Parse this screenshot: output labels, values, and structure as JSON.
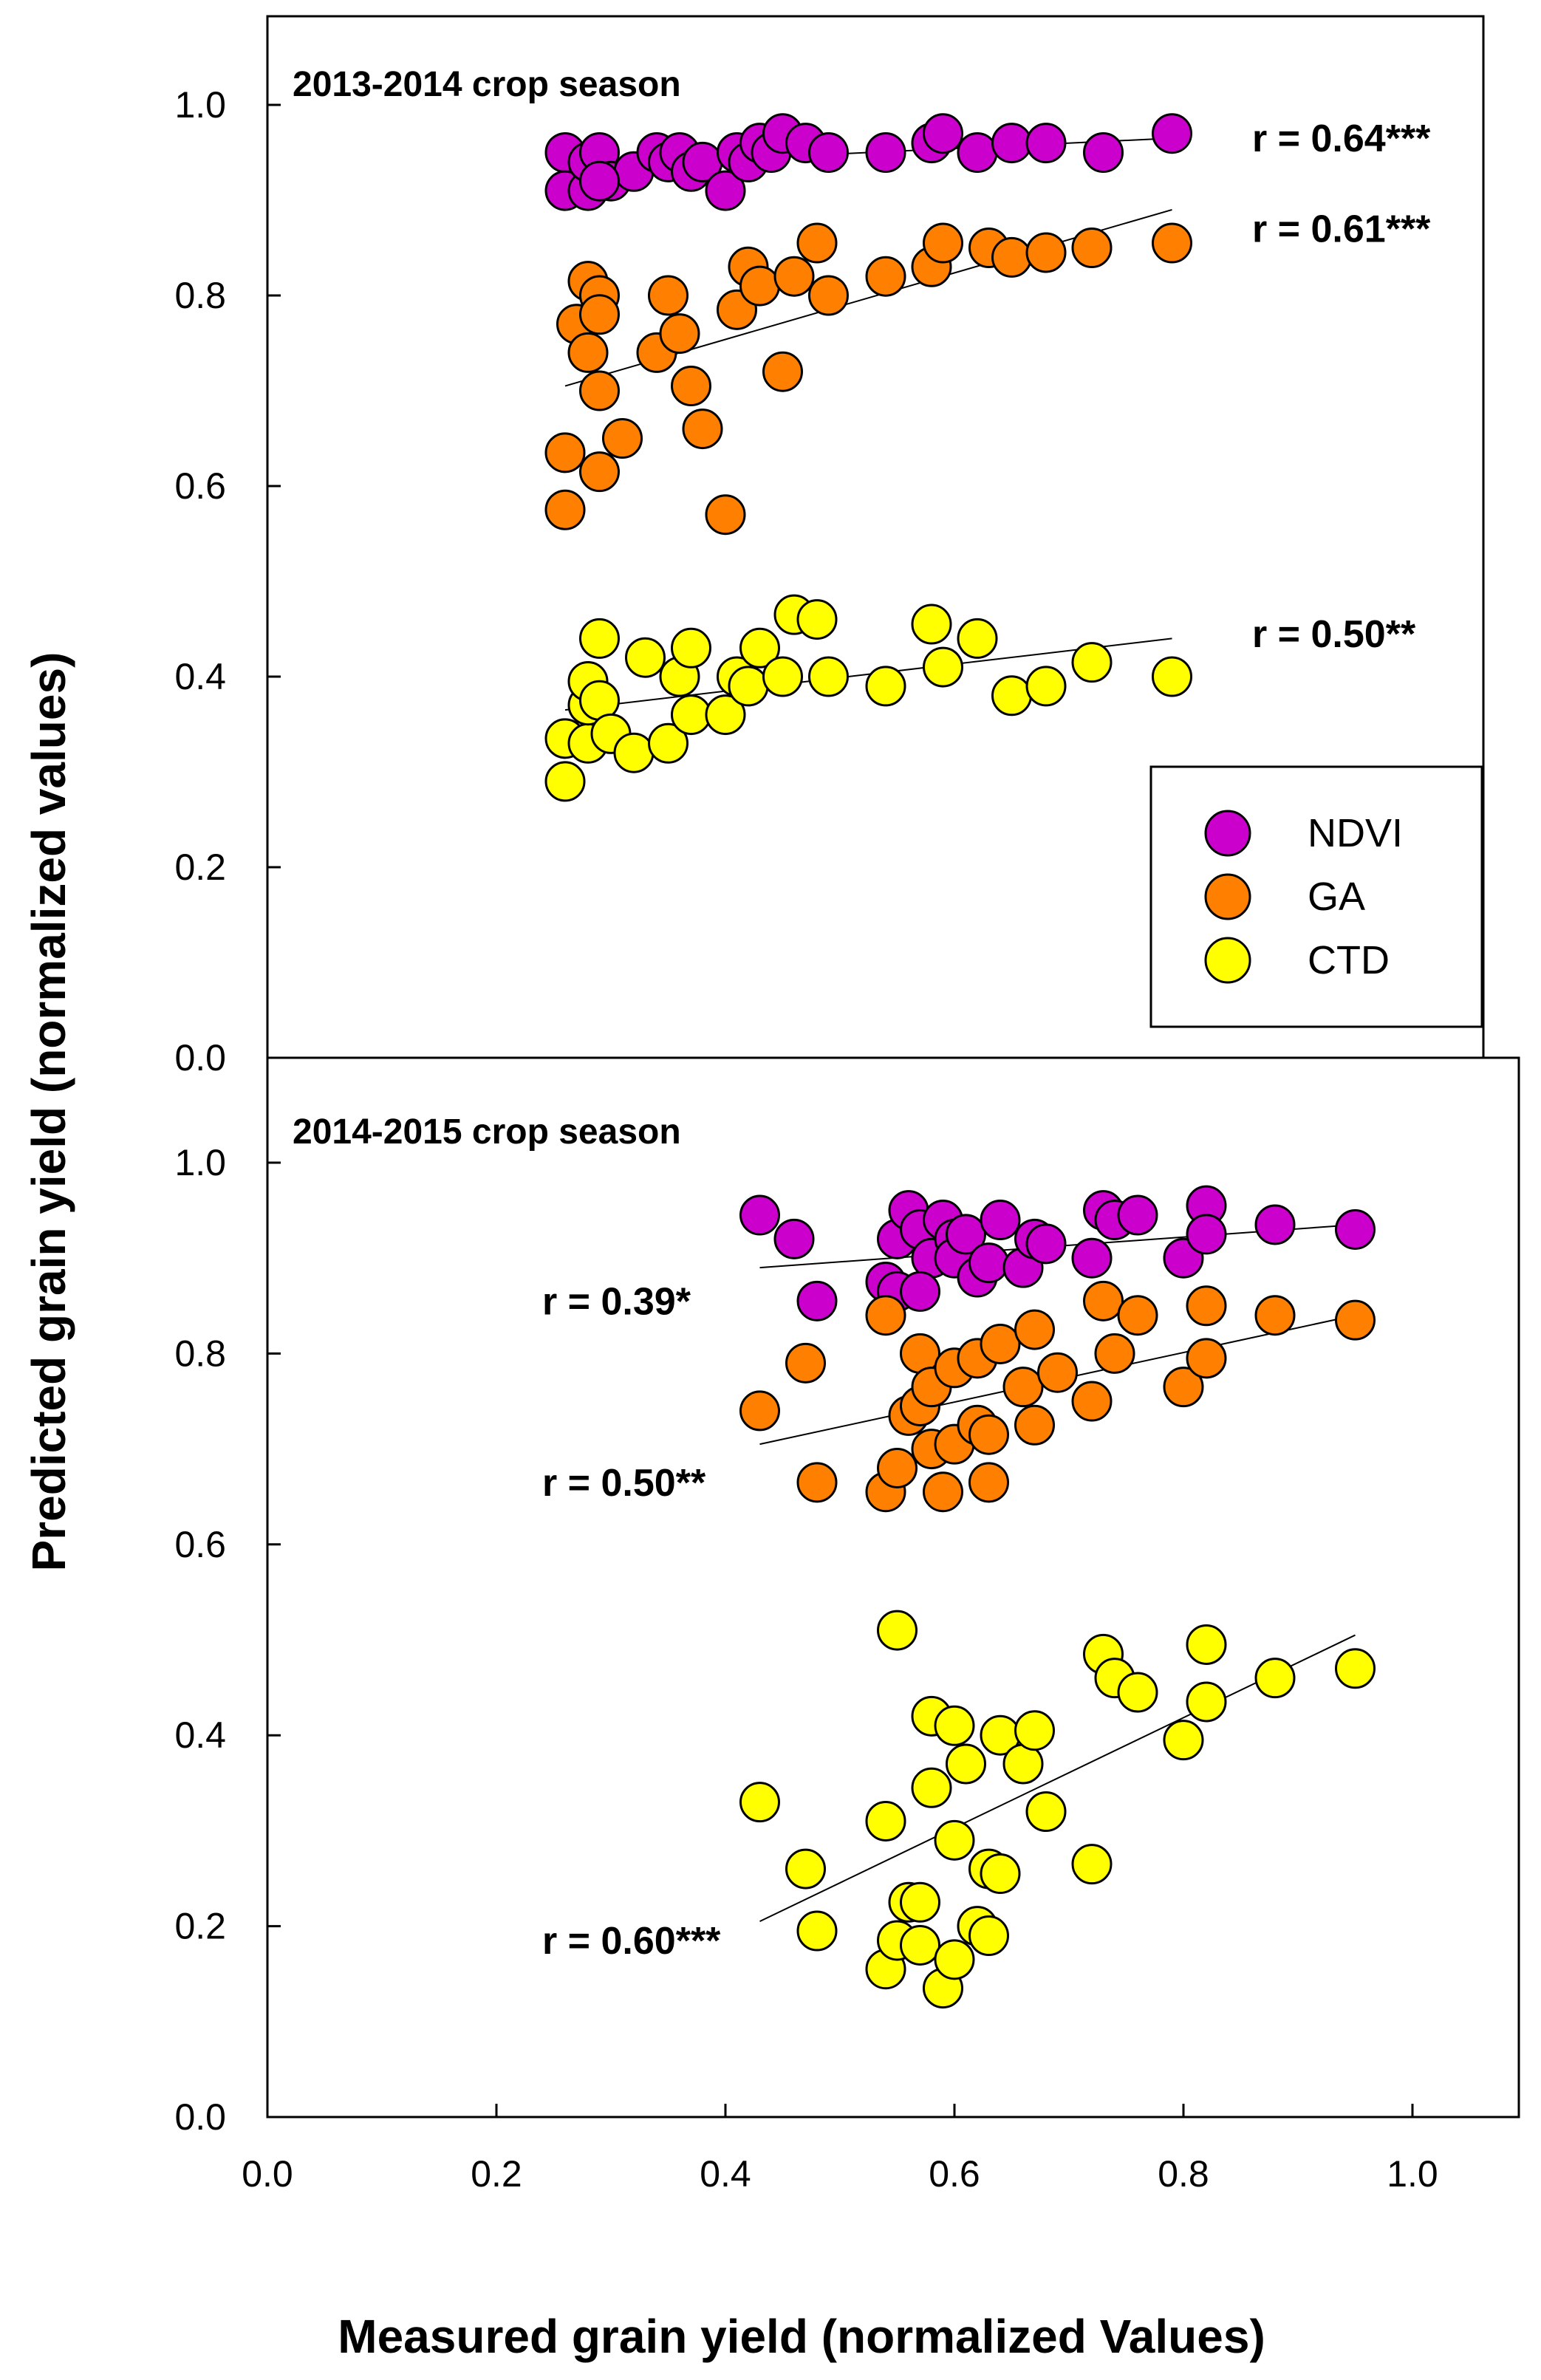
{
  "chart_data": {
    "type": "scatter",
    "x_label": "Measured grain yield (normalized Values)",
    "y_label": "Predicted grain yield (normalized values)",
    "x_ticks": [
      "0.0",
      "0.2",
      "0.4",
      "0.6",
      "0.8",
      "1.0"
    ],
    "y_ticks": [
      "0.0",
      "0.2",
      "0.4",
      "0.6",
      "0.8",
      "1.0"
    ],
    "xlim": [
      0,
      1.1
    ],
    "ylim": [
      0,
      1.05
    ],
    "legend": {
      "position": "inside top panel, lower-right",
      "entries": [
        {
          "name": "NDVI",
          "color": "#cc00cc"
        },
        {
          "name": "GA",
          "color": "#ff8000"
        },
        {
          "name": "CTD",
          "color": "#ffff00"
        }
      ]
    },
    "panels": [
      {
        "title": "2013-2014 crop season",
        "series": [
          {
            "name": "NDVI",
            "color": "#cc00cc",
            "r_label": "r = 0.64***",
            "label_anchor": [
              0.86,
              0.965
            ],
            "fit": [
              [
                0.26,
                0.935
              ],
              [
                0.79,
                0.965
              ]
            ],
            "points": [
              [
                0.26,
                0.95
              ],
              [
                0.26,
                0.91
              ],
              [
                0.28,
                0.91
              ],
              [
                0.28,
                0.94
              ],
              [
                0.29,
                0.95
              ],
              [
                0.3,
                0.92
              ],
              [
                0.32,
                0.93
              ],
              [
                0.34,
                0.95
              ],
              [
                0.35,
                0.94
              ],
              [
                0.36,
                0.95
              ],
              [
                0.37,
                0.93
              ],
              [
                0.38,
                0.94
              ],
              [
                0.4,
                0.91
              ],
              [
                0.41,
                0.95
              ],
              [
                0.42,
                0.94
              ],
              [
                0.43,
                0.96
              ],
              [
                0.44,
                0.95
              ],
              [
                0.45,
                0.97
              ],
              [
                0.47,
                0.96
              ],
              [
                0.49,
                0.95
              ],
              [
                0.54,
                0.95
              ],
              [
                0.58,
                0.96
              ],
              [
                0.59,
                0.97
              ],
              [
                0.62,
                0.95
              ],
              [
                0.65,
                0.96
              ],
              [
                0.68,
                0.96
              ],
              [
                0.73,
                0.95
              ],
              [
                0.79,
                0.97
              ],
              [
                0.29,
                0.92
              ]
            ]
          },
          {
            "name": "GA",
            "color": "#ff8000",
            "r_label": "r = 0.61***",
            "label_anchor": [
              0.86,
              0.87
            ],
            "fit": [
              [
                0.26,
                0.705
              ],
              [
                0.79,
                0.89
              ]
            ],
            "points": [
              [
                0.26,
                0.575
              ],
              [
                0.26,
                0.635
              ],
              [
                0.27,
                0.77
              ],
              [
                0.28,
                0.815
              ],
              [
                0.28,
                0.74
              ],
              [
                0.29,
                0.7
              ],
              [
                0.29,
                0.8
              ],
              [
                0.29,
                0.78
              ],
              [
                0.29,
                0.615
              ],
              [
                0.31,
                0.65
              ],
              [
                0.34,
                0.74
              ],
              [
                0.35,
                0.8
              ],
              [
                0.36,
                0.76
              ],
              [
                0.37,
                0.705
              ],
              [
                0.38,
                0.66
              ],
              [
                0.4,
                0.57
              ],
              [
                0.41,
                0.785
              ],
              [
                0.42,
                0.83
              ],
              [
                0.43,
                0.81
              ],
              [
                0.45,
                0.72
              ],
              [
                0.46,
                0.82
              ],
              [
                0.48,
                0.855
              ],
              [
                0.49,
                0.8
              ],
              [
                0.54,
                0.82
              ],
              [
                0.58,
                0.83
              ],
              [
                0.59,
                0.855
              ],
              [
                0.63,
                0.85
              ],
              [
                0.65,
                0.84
              ],
              [
                0.68,
                0.845
              ],
              [
                0.72,
                0.85
              ],
              [
                0.79,
                0.855
              ]
            ]
          },
          {
            "name": "CTD",
            "color": "#ffff00",
            "r_label": "r = 0.50**",
            "label_anchor": [
              0.86,
              0.445
            ],
            "fit": [
              [
                0.26,
                0.365
              ],
              [
                0.79,
                0.44
              ]
            ],
            "points": [
              [
                0.26,
                0.29
              ],
              [
                0.26,
                0.335
              ],
              [
                0.28,
                0.33
              ],
              [
                0.28,
                0.37
              ],
              [
                0.28,
                0.395
              ],
              [
                0.29,
                0.375
              ],
              [
                0.29,
                0.44
              ],
              [
                0.3,
                0.34
              ],
              [
                0.32,
                0.32
              ],
              [
                0.33,
                0.42
              ],
              [
                0.35,
                0.33
              ],
              [
                0.36,
                0.4
              ],
              [
                0.37,
                0.43
              ],
              [
                0.37,
                0.36
              ],
              [
                0.4,
                0.36
              ],
              [
                0.41,
                0.4
              ],
              [
                0.42,
                0.39
              ],
              [
                0.43,
                0.43
              ],
              [
                0.45,
                0.4
              ],
              [
                0.46,
                0.465
              ],
              [
                0.48,
                0.46
              ],
              [
                0.49,
                0.4
              ],
              [
                0.54,
                0.39
              ],
              [
                0.58,
                0.455
              ],
              [
                0.59,
                0.41
              ],
              [
                0.62,
                0.44
              ],
              [
                0.65,
                0.38
              ],
              [
                0.68,
                0.39
              ],
              [
                0.72,
                0.415
              ],
              [
                0.79,
                0.4
              ]
            ]
          }
        ]
      },
      {
        "title": "2014-2015 crop season",
        "series": [
          {
            "name": "NDVI",
            "color": "#cc00cc",
            "r_label": "r = 0.39*",
            "label_anchor": [
              0.24,
              0.855
            ],
            "fit": [
              [
                0.43,
                0.89
              ],
              [
                0.95,
                0.935
              ]
            ],
            "points": [
              [
                0.43,
                0.945
              ],
              [
                0.46,
                0.92
              ],
              [
                0.48,
                0.855
              ],
              [
                0.54,
                0.875
              ],
              [
                0.55,
                0.865
              ],
              [
                0.55,
                0.92
              ],
              [
                0.56,
                0.95
              ],
              [
                0.57,
                0.93
              ],
              [
                0.58,
                0.9
              ],
              [
                0.59,
                0.94
              ],
              [
                0.6,
                0.92
              ],
              [
                0.6,
                0.9
              ],
              [
                0.61,
                0.925
              ],
              [
                0.62,
                0.88
              ],
              [
                0.63,
                0.895
              ],
              [
                0.64,
                0.94
              ],
              [
                0.66,
                0.89
              ],
              [
                0.67,
                0.92
              ],
              [
                0.68,
                0.915
              ],
              [
                0.72,
                0.9
              ],
              [
                0.73,
                0.95
              ],
              [
                0.74,
                0.94
              ],
              [
                0.76,
                0.945
              ],
              [
                0.8,
                0.9
              ],
              [
                0.82,
                0.955
              ],
              [
                0.82,
                0.925
              ],
              [
                0.88,
                0.935
              ],
              [
                0.95,
                0.93
              ],
              [
                0.57,
                0.865
              ]
            ]
          },
          {
            "name": "GA",
            "color": "#ff8000",
            "r_label": "r = 0.50**",
            "label_anchor": [
              0.24,
              0.665
            ],
            "fit": [
              [
                0.43,
                0.705
              ],
              [
                0.95,
                0.84
              ]
            ],
            "points": [
              [
                0.43,
                0.74
              ],
              [
                0.47,
                0.79
              ],
              [
                0.48,
                0.665
              ],
              [
                0.54,
                0.655
              ],
              [
                0.54,
                0.84
              ],
              [
                0.55,
                0.68
              ],
              [
                0.56,
                0.735
              ],
              [
                0.57,
                0.745
              ],
              [
                0.57,
                0.8
              ],
              [
                0.58,
                0.7
              ],
              [
                0.58,
                0.765
              ],
              [
                0.59,
                0.655
              ],
              [
                0.6,
                0.705
              ],
              [
                0.6,
                0.785
              ],
              [
                0.62,
                0.725
              ],
              [
                0.62,
                0.795
              ],
              [
                0.63,
                0.665
              ],
              [
                0.63,
                0.715
              ],
              [
                0.64,
                0.81
              ],
              [
                0.66,
                0.765
              ],
              [
                0.67,
                0.725
              ],
              [
                0.67,
                0.825
              ],
              [
                0.69,
                0.78
              ],
              [
                0.72,
                0.75
              ],
              [
                0.73,
                0.855
              ],
              [
                0.74,
                0.8
              ],
              [
                0.76,
                0.84
              ],
              [
                0.8,
                0.765
              ],
              [
                0.82,
                0.795
              ],
              [
                0.82,
                0.85
              ],
              [
                0.88,
                0.84
              ],
              [
                0.95,
                0.835
              ]
            ]
          },
          {
            "name": "CTD",
            "color": "#ffff00",
            "r_label": "r = 0.60***",
            "label_anchor": [
              0.24,
              0.185
            ],
            "fit": [
              [
                0.43,
                0.205
              ],
              [
                0.95,
                0.505
              ]
            ],
            "points": [
              [
                0.43,
                0.33
              ],
              [
                0.47,
                0.26
              ],
              [
                0.48,
                0.195
              ],
              [
                0.54,
                0.155
              ],
              [
                0.54,
                0.31
              ],
              [
                0.55,
                0.185
              ],
              [
                0.55,
                0.51
              ],
              [
                0.56,
                0.225
              ],
              [
                0.57,
                0.225
              ],
              [
                0.57,
                0.18
              ],
              [
                0.58,
                0.42
              ],
              [
                0.58,
                0.345
              ],
              [
                0.59,
                0.135
              ],
              [
                0.6,
                0.165
              ],
              [
                0.6,
                0.29
              ],
              [
                0.6,
                0.41
              ],
              [
                0.61,
                0.37
              ],
              [
                0.62,
                0.2
              ],
              [
                0.63,
                0.19
              ],
              [
                0.63,
                0.26
              ],
              [
                0.64,
                0.255
              ],
              [
                0.64,
                0.4
              ],
              [
                0.66,
                0.37
              ],
              [
                0.67,
                0.405
              ],
              [
                0.68,
                0.32
              ],
              [
                0.72,
                0.265
              ],
              [
                0.73,
                0.485
              ],
              [
                0.74,
                0.46
              ],
              [
                0.76,
                0.445
              ],
              [
                0.8,
                0.395
              ],
              [
                0.82,
                0.495
              ],
              [
                0.82,
                0.435
              ],
              [
                0.88,
                0.46
              ],
              [
                0.95,
                0.47
              ]
            ]
          }
        ]
      }
    ]
  }
}
